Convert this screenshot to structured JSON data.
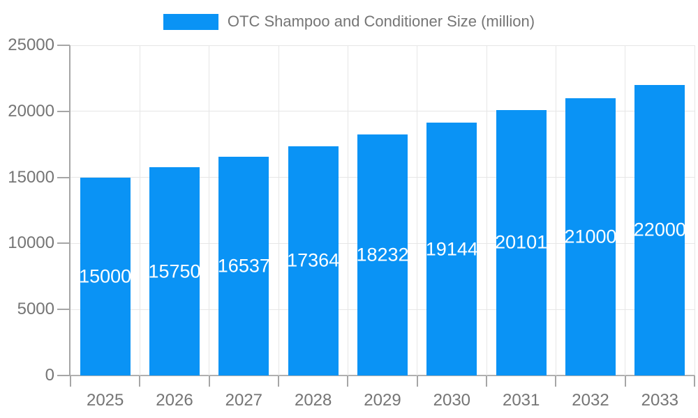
{
  "chart_data": {
    "type": "bar",
    "legend": "OTC Shampoo and Conditioner Size (million)",
    "legend_position": "top",
    "categories": [
      "2025",
      "2026",
      "2027",
      "2028",
      "2029",
      "2030",
      "2031",
      "2032",
      "2033"
    ],
    "values": [
      15000,
      15750,
      16537,
      17364,
      18232,
      19144,
      20101,
      21000,
      22000
    ],
    "value_labels": [
      "15000",
      "15750",
      "16537",
      "17364",
      "18232",
      "19144",
      "20101",
      "21000",
      "22000"
    ],
    "yticks": [
      0,
      5000,
      10000,
      15000,
      20000,
      25000
    ],
    "ytick_labels": [
      "0",
      "5000",
      "10000",
      "15000",
      "20000",
      "25000"
    ],
    "ylim": [
      0,
      25000
    ],
    "grid": "on",
    "bar_color": "#0a93f5",
    "value_label_color": "#ffffff",
    "axis_text_color": "#757575",
    "gridline_color": "#e6e6e6",
    "axis_line_color": "#a6a6a6",
    "background_color": "#ffffff"
  }
}
